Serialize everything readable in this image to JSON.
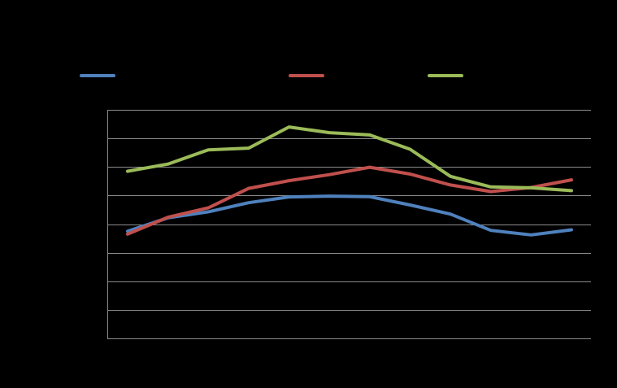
{
  "chart_data": {
    "type": "line",
    "title": "",
    "xlabel": "",
    "ylabel": "",
    "x": [
      1,
      2,
      3,
      4,
      5,
      6,
      7,
      8,
      9,
      10,
      11,
      12
    ],
    "ylim": [
      0,
      8
    ],
    "grid": true,
    "gridlines": 8,
    "legend_position": "top",
    "series": [
      {
        "color": "#4F81BD",
        "values": [
          3.75,
          4.22,
          4.43,
          4.75,
          4.95,
          4.98,
          4.96,
          4.67,
          4.35,
          3.78,
          3.62,
          3.8
        ]
      },
      {
        "color": "#C0504D",
        "values": [
          3.65,
          4.24,
          4.57,
          5.25,
          5.52,
          5.73,
          5.99,
          5.75,
          5.37,
          5.14,
          5.28,
          5.55
        ]
      },
      {
        "color": "#9BBB59",
        "values": [
          5.85,
          6.1,
          6.6,
          6.66,
          7.4,
          7.2,
          7.12,
          6.62,
          5.67,
          5.3,
          5.27,
          5.17
        ]
      }
    ]
  }
}
